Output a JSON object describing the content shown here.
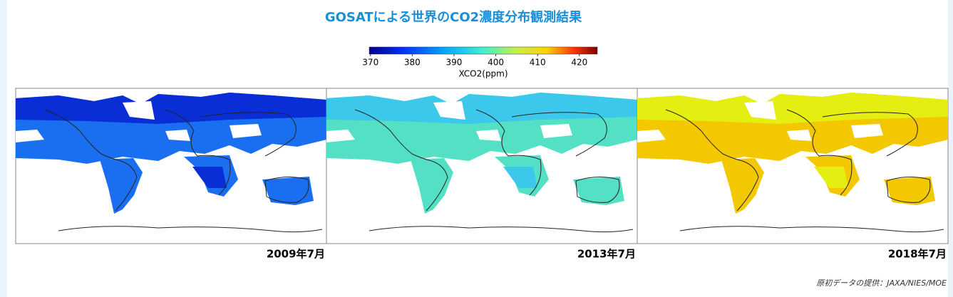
{
  "header": {
    "title": "GOSATによる世界のCO2濃度分布観測結果"
  },
  "colorbar": {
    "label": "XCO2(ppm)",
    "lim": [
      369.7,
      424.3
    ],
    "ticks": [
      370,
      380,
      390,
      400,
      410,
      420
    ]
  },
  "panels": [
    {
      "caption": "2009年7月"
    },
    {
      "caption": "2013年7月"
    },
    {
      "caption": "2018年7月"
    }
  ],
  "credit": "原初データの提供：JAXA/NIES/MOE"
}
